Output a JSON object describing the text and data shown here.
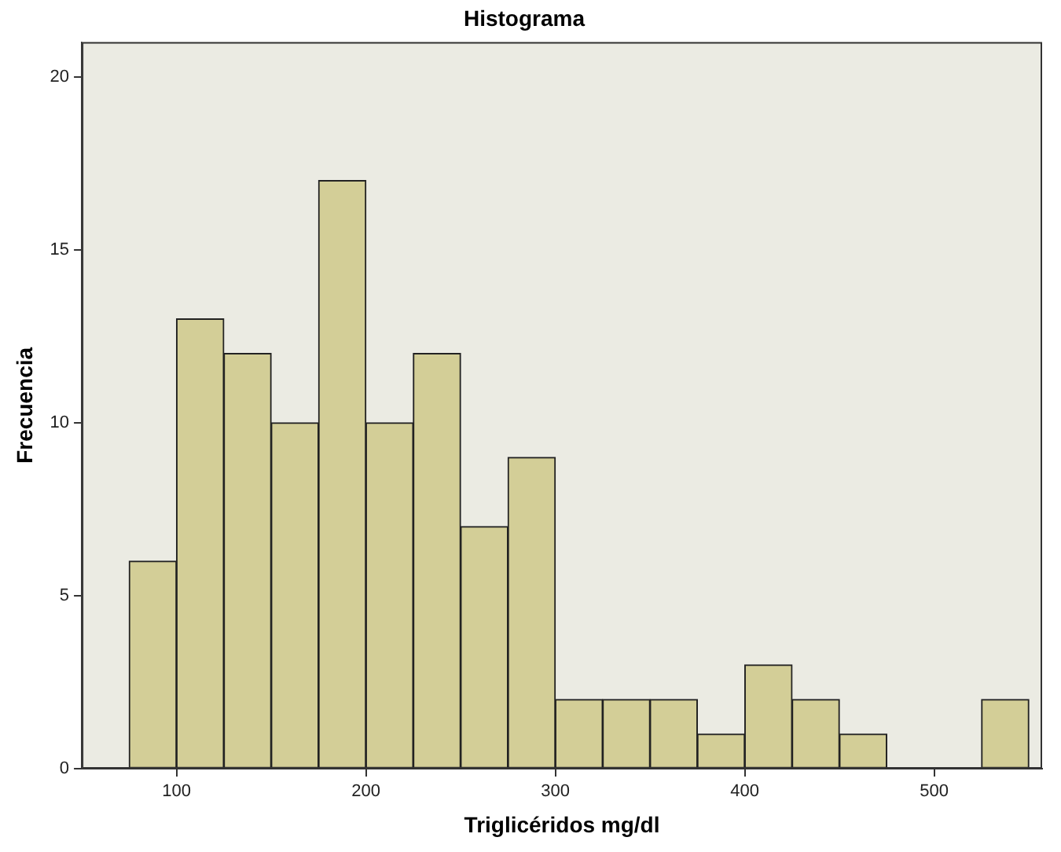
{
  "chart_data": {
    "type": "histogram",
    "title": "Histograma",
    "xlabel": "Triglicéridos mg/dl",
    "ylabel": "Frecuencia",
    "bins": [
      75,
      100,
      125,
      150,
      175,
      200,
      225,
      250,
      275,
      300,
      325,
      350,
      375,
      400,
      425,
      450,
      475,
      500,
      525,
      550
    ],
    "values": [
      6,
      13,
      12,
      10,
      17,
      10,
      12,
      7,
      9,
      2,
      2,
      2,
      1,
      3,
      2,
      1,
      0,
      0,
      2
    ],
    "color": "#d3ce97",
    "xlim": [
      50,
      557
    ],
    "ylim": [
      0,
      21
    ],
    "xticks": [
      100,
      200,
      300,
      400,
      500
    ],
    "yticks": [
      0,
      5,
      10,
      15,
      20
    ]
  }
}
